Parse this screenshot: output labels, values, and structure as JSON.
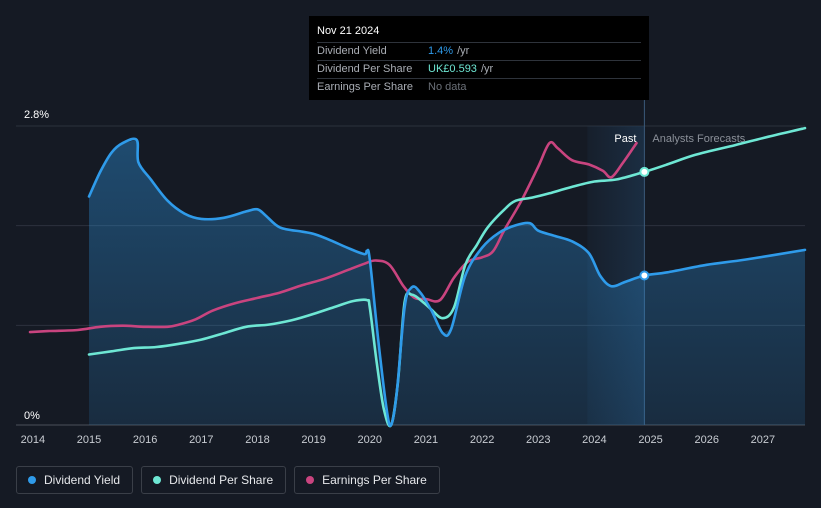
{
  "tooltip": {
    "date": "Nov 21 2024",
    "rows": [
      {
        "label": "Dividend Yield",
        "value": "1.4%",
        "unit": "/yr",
        "color": "#2f9bea"
      },
      {
        "label": "Dividend Per Share",
        "value": "UK£0.593",
        "unit": "/yr",
        "color": "#6ee7d4"
      },
      {
        "label": "Earnings Per Share",
        "value": "No data",
        "unit": "",
        "color": "#6b7078"
      }
    ]
  },
  "legend": [
    {
      "label": "Dividend Yield",
      "color": "#2f9bea"
    },
    {
      "label": "Dividend Per Share",
      "color": "#6ee7d4"
    },
    {
      "label": "Earnings Per Share",
      "color": "#c9447f"
    }
  ],
  "chart_data": {
    "type": "line",
    "title": "",
    "xlabel": "",
    "ylabel": "",
    "x_ticks": [
      "2014",
      "2015",
      "2016",
      "2017",
      "2018",
      "2019",
      "2020",
      "2021",
      "2022",
      "2023",
      "2024",
      "2025",
      "2026",
      "2027"
    ],
    "xlim": [
      2013.7,
      2027.75
    ],
    "y_tick_labels": [
      "2.8%",
      "0%"
    ],
    "ylim": [
      0,
      2.8
    ],
    "past_label": "Past",
    "forecast_label": "Analysts Forecasts",
    "forecast_start": 2024.89,
    "series": [
      {
        "name": "Dividend Yield",
        "color": "#2f9bea",
        "points": [
          [
            2015.0,
            2.14
          ],
          [
            2015.2,
            2.37
          ],
          [
            2015.4,
            2.55
          ],
          [
            2015.6,
            2.64
          ],
          [
            2015.85,
            2.67
          ],
          [
            2015.88,
            2.46
          ],
          [
            2016.1,
            2.3
          ],
          [
            2016.4,
            2.1
          ],
          [
            2016.7,
            1.98
          ],
          [
            2017.0,
            1.93
          ],
          [
            2017.4,
            1.94
          ],
          [
            2017.8,
            2.0
          ],
          [
            2018.0,
            2.02
          ],
          [
            2018.15,
            1.96
          ],
          [
            2018.4,
            1.85
          ],
          [
            2018.8,
            1.81
          ],
          [
            2019.0,
            1.79
          ],
          [
            2019.3,
            1.73
          ],
          [
            2019.6,
            1.66
          ],
          [
            2019.9,
            1.6
          ],
          [
            2019.95,
            1.63
          ],
          [
            2020.0,
            1.55
          ],
          [
            2020.15,
            0.8
          ],
          [
            2020.3,
            0.15
          ],
          [
            2020.38,
            0.0
          ],
          [
            2020.48,
            0.3
          ],
          [
            2020.62,
            1.1
          ],
          [
            2020.75,
            1.29
          ],
          [
            2020.9,
            1.24
          ],
          [
            2021.1,
            1.07
          ],
          [
            2021.3,
            0.86
          ],
          [
            2021.45,
            0.9
          ],
          [
            2021.7,
            1.4
          ],
          [
            2022.0,
            1.66
          ],
          [
            2022.3,
            1.8
          ],
          [
            2022.6,
            1.87
          ],
          [
            2022.85,
            1.89
          ],
          [
            2023.0,
            1.82
          ],
          [
            2023.3,
            1.77
          ],
          [
            2023.6,
            1.72
          ],
          [
            2023.9,
            1.61
          ],
          [
            2024.1,
            1.4
          ],
          [
            2024.3,
            1.3
          ],
          [
            2024.55,
            1.34
          ],
          [
            2024.89,
            1.4
          ],
          [
            2025.3,
            1.43
          ],
          [
            2026.0,
            1.5
          ],
          [
            2026.7,
            1.55
          ],
          [
            2027.75,
            1.64
          ]
        ]
      },
      {
        "name": "Dividend Per Share",
        "color": "#6ee7d4",
        "points": [
          [
            2015.0,
            0.66
          ],
          [
            2015.4,
            0.69
          ],
          [
            2015.8,
            0.72
          ],
          [
            2016.2,
            0.73
          ],
          [
            2016.6,
            0.76
          ],
          [
            2017.0,
            0.8
          ],
          [
            2017.4,
            0.86
          ],
          [
            2017.8,
            0.92
          ],
          [
            2018.2,
            0.94
          ],
          [
            2018.6,
            0.98
          ],
          [
            2019.0,
            1.04
          ],
          [
            2019.4,
            1.11
          ],
          [
            2019.7,
            1.16
          ],
          [
            2019.95,
            1.17
          ],
          [
            2020.0,
            1.1
          ],
          [
            2020.12,
            0.6
          ],
          [
            2020.25,
            0.15
          ],
          [
            2020.38,
            0.0
          ],
          [
            2020.5,
            0.4
          ],
          [
            2020.62,
            1.15
          ],
          [
            2020.75,
            1.22
          ],
          [
            2020.95,
            1.15
          ],
          [
            2021.1,
            1.08
          ],
          [
            2021.3,
            1.0
          ],
          [
            2021.5,
            1.1
          ],
          [
            2021.7,
            1.5
          ],
          [
            2021.9,
            1.68
          ],
          [
            2022.1,
            1.85
          ],
          [
            2022.4,
            2.02
          ],
          [
            2022.6,
            2.1
          ],
          [
            2022.9,
            2.13
          ],
          [
            2023.2,
            2.17
          ],
          [
            2023.6,
            2.23
          ],
          [
            2024.0,
            2.28
          ],
          [
            2024.4,
            2.3
          ],
          [
            2024.89,
            2.37
          ],
          [
            2025.3,
            2.44
          ],
          [
            2025.8,
            2.53
          ],
          [
            2026.5,
            2.62
          ],
          [
            2027.1,
            2.7
          ],
          [
            2027.75,
            2.78
          ]
        ]
      },
      {
        "name": "Earnings Per Share",
        "color": "#c9447f",
        "points": [
          [
            2013.95,
            0.87
          ],
          [
            2014.3,
            0.88
          ],
          [
            2014.8,
            0.89
          ],
          [
            2015.2,
            0.92
          ],
          [
            2015.6,
            0.93
          ],
          [
            2016.0,
            0.92
          ],
          [
            2016.4,
            0.92
          ],
          [
            2016.6,
            0.94
          ],
          [
            2016.9,
            0.99
          ],
          [
            2017.2,
            1.07
          ],
          [
            2017.6,
            1.14
          ],
          [
            2018.0,
            1.19
          ],
          [
            2018.4,
            1.24
          ],
          [
            2018.8,
            1.31
          ],
          [
            2019.2,
            1.37
          ],
          [
            2019.6,
            1.45
          ],
          [
            2019.9,
            1.51
          ],
          [
            2020.1,
            1.54
          ],
          [
            2020.35,
            1.5
          ],
          [
            2020.6,
            1.3
          ],
          [
            2020.8,
            1.19
          ],
          [
            2021.0,
            1.18
          ],
          [
            2021.25,
            1.17
          ],
          [
            2021.5,
            1.38
          ],
          [
            2021.75,
            1.53
          ],
          [
            2022.0,
            1.57
          ],
          [
            2022.2,
            1.63
          ],
          [
            2022.4,
            1.83
          ],
          [
            2022.7,
            2.1
          ],
          [
            2023.0,
            2.42
          ],
          [
            2023.2,
            2.64
          ],
          [
            2023.35,
            2.59
          ],
          [
            2023.6,
            2.48
          ],
          [
            2023.9,
            2.44
          ],
          [
            2024.15,
            2.38
          ],
          [
            2024.3,
            2.32
          ],
          [
            2024.5,
            2.45
          ],
          [
            2024.75,
            2.64
          ]
        ]
      }
    ],
    "markers": [
      {
        "series": "Dividend Yield",
        "x": 2024.89,
        "y": 1.4
      },
      {
        "series": "Dividend Per Share",
        "x": 2024.89,
        "y": 2.37
      }
    ],
    "grid": true
  }
}
